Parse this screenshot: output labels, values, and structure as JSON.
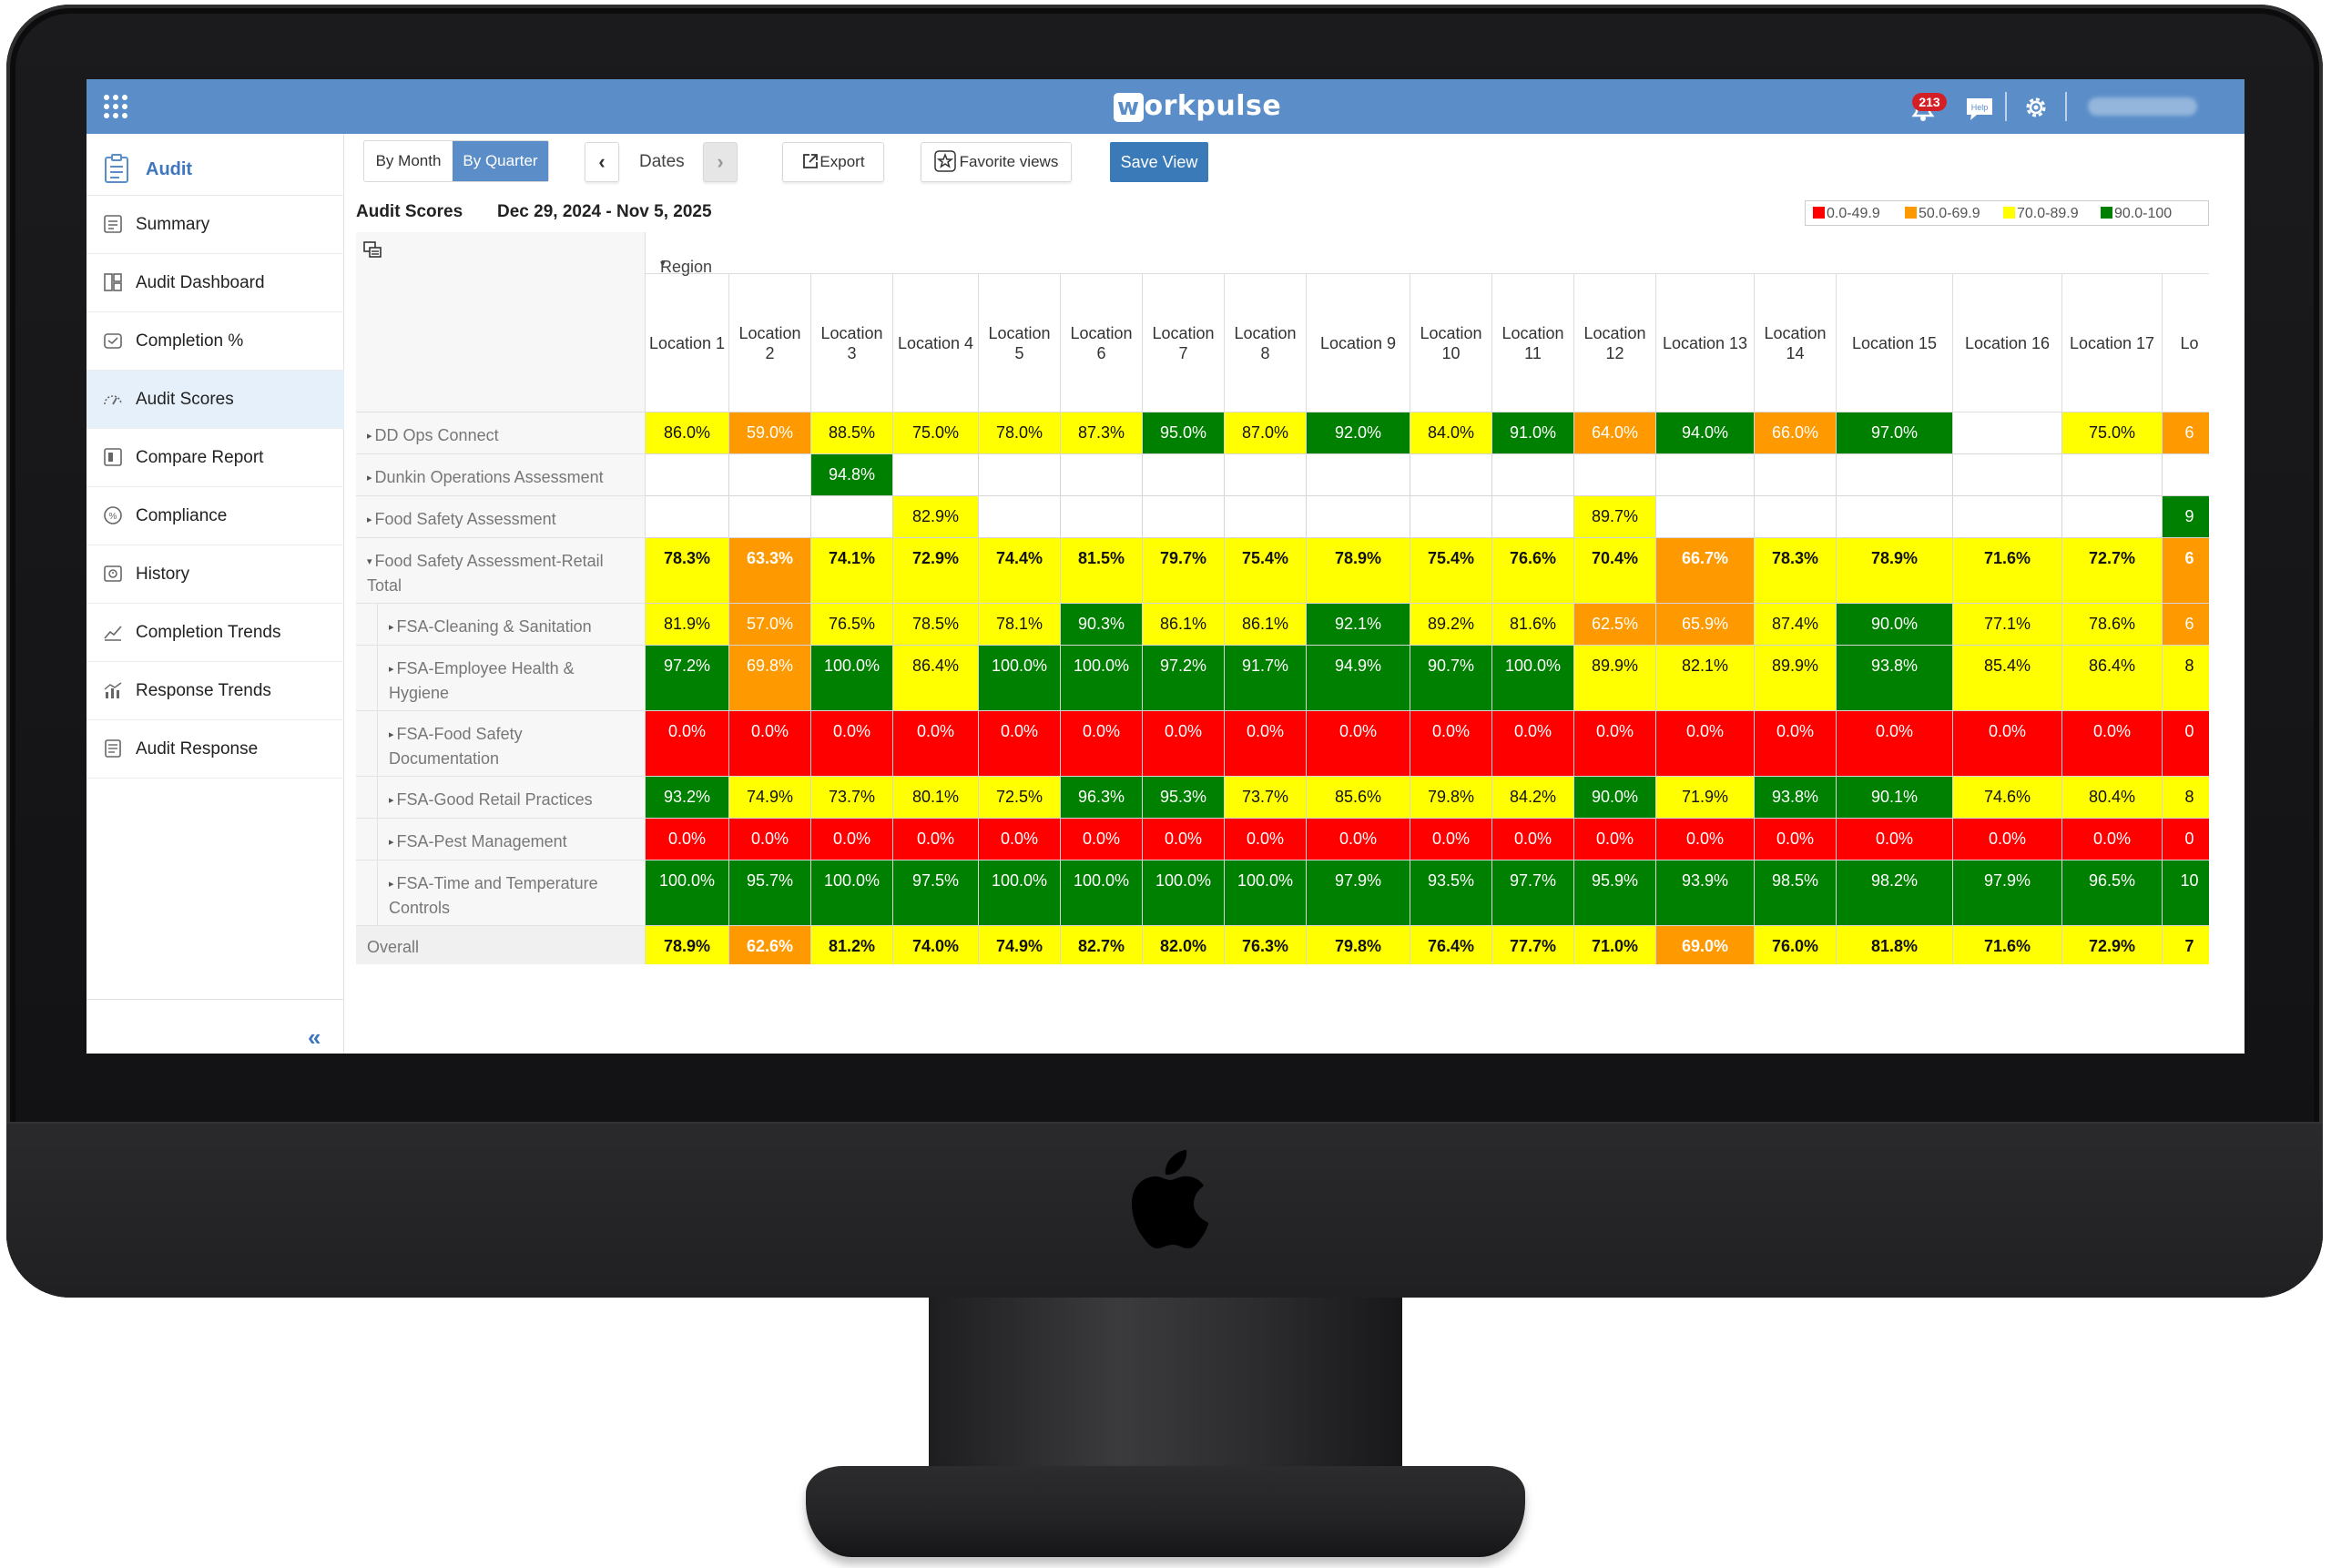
{
  "app": {
    "brand_mark": "w",
    "brand_rest": "orkpulse",
    "notification_count": "213",
    "help_label": "Help"
  },
  "sidebar": {
    "header": "Audit",
    "items": [
      {
        "label": "Summary",
        "icon": "summary-icon"
      },
      {
        "label": "Audit Dashboard",
        "icon": "dashboard-icon"
      },
      {
        "label": "Completion %",
        "icon": "completion-icon"
      },
      {
        "label": "Audit Scores",
        "icon": "gauge-icon",
        "active": true
      },
      {
        "label": "Compare Report",
        "icon": "compare-icon"
      },
      {
        "label": "Compliance",
        "icon": "compliance-icon"
      },
      {
        "label": "History",
        "icon": "history-icon"
      },
      {
        "label": "Completion Trends",
        "icon": "trend-icon"
      },
      {
        "label": "Response Trends",
        "icon": "bar-trend-icon"
      },
      {
        "label": "Audit Response",
        "icon": "response-icon"
      }
    ],
    "collapse_label": "«"
  },
  "toolbar": {
    "by_month": "By Month",
    "by_quarter": "By Quarter",
    "dates": "Dates",
    "export": "Export",
    "favorite_views": "Favorite views",
    "save_view": "Save View"
  },
  "report": {
    "title": "Audit Scores",
    "date_range": "Dec 29, 2024 - Nov 5, 2025",
    "legend": [
      {
        "label": "0.0-49.9",
        "color": "#ff0000"
      },
      {
        "label": "50.0-69.9",
        "color": "#ff9900"
      },
      {
        "label": "70.0-89.9",
        "color": "#ffff00"
      },
      {
        "label": "90.0-100",
        "color": "#008000"
      }
    ],
    "region_label": "Region",
    "columns": [
      "Location 1",
      "Location 2",
      "Location 3",
      "Location 4",
      "Location 5",
      "Location 6",
      "Location 7",
      "Location 8",
      "Location 9",
      "Location 10",
      "Location 11",
      "Location 12",
      "Location 13",
      "Location 14",
      "Location 15",
      "Location 16",
      "Location 17",
      "Lo"
    ],
    "rows": [
      {
        "label": "DD Ops Connect",
        "level": 0,
        "expanded": false,
        "bold": false,
        "values": [
          "86.0%",
          "59.0%",
          "88.5%",
          "75.0%",
          "78.0%",
          "87.3%",
          "95.0%",
          "87.0%",
          "92.0%",
          "84.0%",
          "91.0%",
          "64.0%",
          "94.0%",
          "66.0%",
          "97.0%",
          "",
          "75.0%",
          "6"
        ]
      },
      {
        "label": "Dunkin Operations Assessment",
        "level": 0,
        "expanded": false,
        "bold": false,
        "values": [
          "",
          "",
          "94.8%",
          "",
          "",
          "",
          "",
          "",
          "",
          "",
          "",
          "",
          "",
          "",
          "",
          "",
          "",
          ""
        ]
      },
      {
        "label": "Food Safety Assessment",
        "level": 0,
        "expanded": false,
        "bold": false,
        "values": [
          "",
          "",
          "",
          "82.9%",
          "",
          "",
          "",
          "",
          "",
          "",
          "",
          "89.7%",
          "",
          "",
          "",
          "",
          "",
          "9"
        ]
      },
      {
        "label": "Food Safety Assessment-Retail Total",
        "level": 0,
        "expanded": true,
        "bold": true,
        "values": [
          "78.3%",
          "63.3%",
          "74.1%",
          "72.9%",
          "74.4%",
          "81.5%",
          "79.7%",
          "75.4%",
          "78.9%",
          "75.4%",
          "76.6%",
          "70.4%",
          "66.7%",
          "78.3%",
          "78.9%",
          "71.6%",
          "72.7%",
          "6"
        ]
      },
      {
        "label": "FSA-Cleaning & Sanitation",
        "level": 1,
        "expanded": false,
        "bold": false,
        "values": [
          "81.9%",
          "57.0%",
          "76.5%",
          "78.5%",
          "78.1%",
          "90.3%",
          "86.1%",
          "86.1%",
          "92.1%",
          "89.2%",
          "81.6%",
          "62.5%",
          "65.9%",
          "87.4%",
          "90.0%",
          "77.1%",
          "78.6%",
          "6"
        ]
      },
      {
        "label": "FSA-Employee Health & Hygiene",
        "level": 1,
        "expanded": false,
        "bold": false,
        "values": [
          "97.2%",
          "69.8%",
          "100.0%",
          "86.4%",
          "100.0%",
          "100.0%",
          "97.2%",
          "91.7%",
          "94.9%",
          "90.7%",
          "100.0%",
          "89.9%",
          "82.1%",
          "89.9%",
          "93.8%",
          "85.4%",
          "86.4%",
          "8"
        ]
      },
      {
        "label": "FSA-Food Safety Documentation",
        "level": 1,
        "expanded": false,
        "bold": false,
        "values": [
          "0.0%",
          "0.0%",
          "0.0%",
          "0.0%",
          "0.0%",
          "0.0%",
          "0.0%",
          "0.0%",
          "0.0%",
          "0.0%",
          "0.0%",
          "0.0%",
          "0.0%",
          "0.0%",
          "0.0%",
          "0.0%",
          "0.0%",
          "0"
        ]
      },
      {
        "label": "FSA-Good Retail Practices",
        "level": 1,
        "expanded": false,
        "bold": false,
        "values": [
          "93.2%",
          "74.9%",
          "73.7%",
          "80.1%",
          "72.5%",
          "96.3%",
          "95.3%",
          "73.7%",
          "85.6%",
          "79.8%",
          "84.2%",
          "90.0%",
          "71.9%",
          "93.8%",
          "90.1%",
          "74.6%",
          "80.4%",
          "8"
        ]
      },
      {
        "label": "FSA-Pest Management",
        "level": 1,
        "expanded": false,
        "bold": false,
        "values": [
          "0.0%",
          "0.0%",
          "0.0%",
          "0.0%",
          "0.0%",
          "0.0%",
          "0.0%",
          "0.0%",
          "0.0%",
          "0.0%",
          "0.0%",
          "0.0%",
          "0.0%",
          "0.0%",
          "0.0%",
          "0.0%",
          "0.0%",
          "0"
        ]
      },
      {
        "label": "FSA-Time and Temperature Controls",
        "level": 1,
        "expanded": false,
        "bold": false,
        "values": [
          "100.0%",
          "95.7%",
          "100.0%",
          "97.5%",
          "100.0%",
          "100.0%",
          "100.0%",
          "100.0%",
          "97.9%",
          "93.5%",
          "97.7%",
          "95.9%",
          "93.9%",
          "98.5%",
          "98.2%",
          "97.9%",
          "96.5%",
          "10"
        ]
      },
      {
        "label": "Overall",
        "level": -1,
        "expanded": false,
        "bold": true,
        "values": [
          "78.9%",
          "62.6%",
          "81.2%",
          "74.0%",
          "74.9%",
          "82.7%",
          "82.0%",
          "76.3%",
          "79.8%",
          "76.4%",
          "77.7%",
          "71.0%",
          "69.0%",
          "76.0%",
          "81.8%",
          "71.6%",
          "72.9%",
          "7"
        ]
      }
    ],
    "hidden_cell_colors": {
      "Food Safety Assessment": {
        "17": "#008000"
      },
      "DD Ops Connect": {
        "17": "#ff9900"
      },
      "Food Safety Assessment-Retail Total": {
        "17": "#ff9900"
      },
      "FSA-Cleaning & Sanitation": {
        "17": "#ff9900"
      },
      "FSA-Employee Health & Hygiene": {
        "17": "#ffff00"
      },
      "FSA-Good Retail Practices": {
        "17": "#ffff00"
      },
      "FSA-Time and Temperature Controls": {
        "17": "#008000"
      },
      "Overall": {
        "17": "#ffff00"
      }
    }
  }
}
